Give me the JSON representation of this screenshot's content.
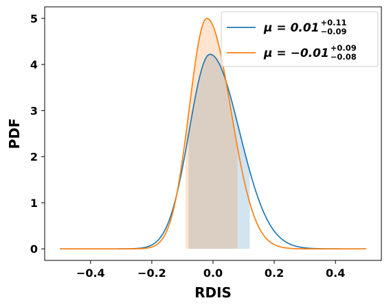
{
  "chart_data": {
    "type": "line",
    "xlabel": "RDIS",
    "ylabel": "PDF",
    "xlim": [
      -0.55,
      0.55
    ],
    "ylim": [
      -0.25,
      5.25
    ],
    "x_ticks": [
      -0.4,
      -0.2,
      0.0,
      0.2,
      0.4
    ],
    "x_tick_labels": [
      "−0.4",
      "−0.2",
      "0.0",
      "0.2",
      "0.4"
    ],
    "y_ticks": [
      0,
      1,
      2,
      3,
      4,
      5
    ],
    "y_tick_labels": [
      "0",
      "1",
      "2",
      "3",
      "4",
      "5"
    ],
    "grid": false,
    "legend_position": "top-right",
    "x_range": [
      -0.5,
      0.5
    ],
    "series": [
      {
        "name": "μ = 0.01",
        "legend_mu": "μ = 0.01",
        "legend_plus": "+0.11",
        "legend_minus": "−0.09",
        "color": "#1f77b4",
        "fill_color": "#1f77b4",
        "mode": -0.01,
        "peak": 4.22,
        "sigma_left": 0.068,
        "sigma_right": 0.096,
        "shade": [
          -0.08,
          0.12
        ]
      },
      {
        "name": "μ = −0.01",
        "legend_mu": "μ = −0.01",
        "legend_plus": "+0.09",
        "legend_minus": "−0.08",
        "color": "#ff7f0e",
        "fill_color": "#ff7f0e",
        "mode": -0.02,
        "peak": 5.0,
        "sigma_left": 0.058,
        "sigma_right": 0.078,
        "shade": [
          -0.09,
          0.08
        ]
      }
    ]
  }
}
